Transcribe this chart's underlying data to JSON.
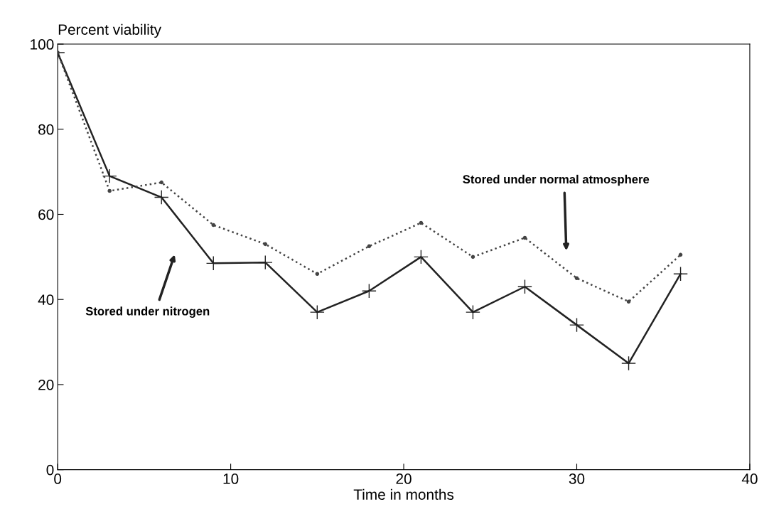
{
  "chart_data": {
    "type": "line",
    "ylabel": "Percent viability",
    "xlabel": "Time in months",
    "xlim": [
      0,
      40
    ],
    "ylim": [
      0,
      100
    ],
    "xticks": [
      0,
      10,
      20,
      30,
      40
    ],
    "yticks": [
      0,
      20,
      40,
      60,
      80,
      100
    ],
    "grid": false,
    "series": [
      {
        "color": "#222222",
        "marker": "cross",
        "line_style": "solid",
        "x": [
          0,
          3,
          6,
          9,
          12,
          15,
          18,
          21,
          24,
          27,
          30,
          33,
          36
        ],
        "values": [
          98,
          69,
          64,
          48.5,
          48.7,
          37,
          42,
          50,
          37,
          43,
          34,
          25,
          46
        ]
      },
      {
        "color": "#444444",
        "marker": "circle",
        "line_style": "dotted",
        "x": [
          0,
          3,
          6,
          9,
          12,
          15,
          18,
          21,
          24,
          27,
          30,
          33,
          36
        ],
        "values": [
          98,
          65.5,
          67.5,
          57.5,
          53,
          46,
          52.5,
          58,
          50,
          54.5,
          45,
          39.5,
          50.5
        ]
      }
    ],
    "annotations": [
      "Stored under normal atmosphere",
      "Stored under nitrogen"
    ]
  }
}
